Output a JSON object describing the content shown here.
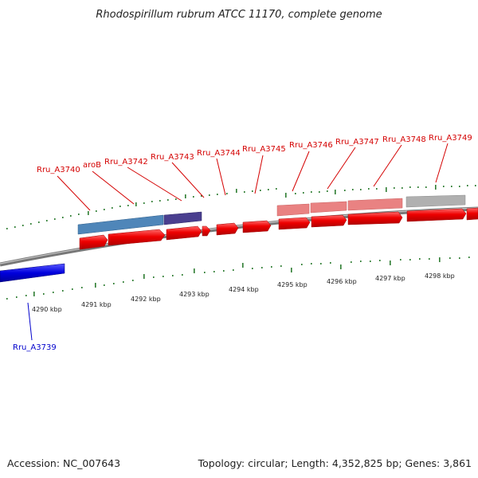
{
  "title": "Rhodospirillum rubrum ATCC 11170, complete genome",
  "footer": {
    "accession": "Accession: NC_007643",
    "summary": "Topology: circular; Length: 4,352,825 bp; Genes: 3,861"
  },
  "scale": {
    "unit": "kbp",
    "ticks": [
      "4290 kbp",
      "4291 kbp",
      "4292 kbp",
      "4293 kbp",
      "4294 kbp",
      "4295 kbp",
      "4296 kbp",
      "4297 kbp",
      "4298 kbp"
    ]
  },
  "genes_forward": [
    {
      "label": "Rru_A3740"
    },
    {
      "label": "aroB"
    },
    {
      "label": "Rru_A3742"
    },
    {
      "label": "Rru_A3743"
    },
    {
      "label": "Rru_A3744"
    },
    {
      "label": "Rru_A3745"
    },
    {
      "label": "Rru_A3746"
    },
    {
      "label": "Rru_A3747"
    },
    {
      "label": "Rru_A3748"
    },
    {
      "label": "Rru_A3749"
    }
  ],
  "genes_reverse": [
    {
      "label": "Rru_A3739"
    }
  ],
  "colors": {
    "forward_cds": "#ee0000",
    "reverse_cds": "#0000dd",
    "backbone": "#888888",
    "tick_mark": "#2e7d32",
    "feature_blue": "#4f86b9",
    "feature_purple": "#4a3f8f",
    "feature_pink": "#e98282",
    "feature_gray": "#b0b0b0"
  }
}
